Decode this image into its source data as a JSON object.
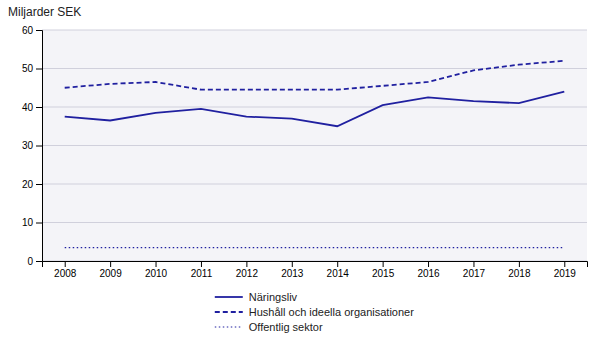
{
  "chart_data": {
    "type": "line",
    "ylabel": "Miljarder SEK",
    "x": [
      2008,
      2009,
      2010,
      2011,
      2012,
      2013,
      2014,
      2015,
      2016,
      2017,
      2018,
      2019
    ],
    "series": [
      {
        "name": "Näringsliv",
        "color": "#2020A0",
        "line_style": "solid",
        "values": [
          37.5,
          36.5,
          38.5,
          39.5,
          37.5,
          37.0,
          35.0,
          40.5,
          42.5,
          41.5,
          41.0,
          44.0
        ]
      },
      {
        "name": "Hushåll och ideella organisationer",
        "color": "#2020A0",
        "line_style": "dashed",
        "values": [
          45.0,
          46.0,
          46.5,
          44.5,
          44.5,
          44.5,
          44.5,
          45.5,
          46.5,
          49.5,
          51.0,
          52.0
        ]
      },
      {
        "name": "Offentlig sektor",
        "color": "#2020A0",
        "line_style": "dotted",
        "values": [
          3.5,
          3.5,
          3.5,
          3.5,
          3.5,
          3.5,
          3.5,
          3.5,
          3.5,
          3.5,
          3.5,
          3.5
        ]
      }
    ],
    "xlim": [
      2007.5,
      2019.5
    ],
    "xticks": [
      2008,
      2009,
      2010,
      2011,
      2012,
      2013,
      2014,
      2015,
      2016,
      2017,
      2018,
      2019
    ],
    "ylim": [
      0,
      60
    ],
    "yticks": [
      0,
      10,
      20,
      30,
      40,
      50,
      60
    ],
    "grid": true,
    "legend": "bottom"
  }
}
